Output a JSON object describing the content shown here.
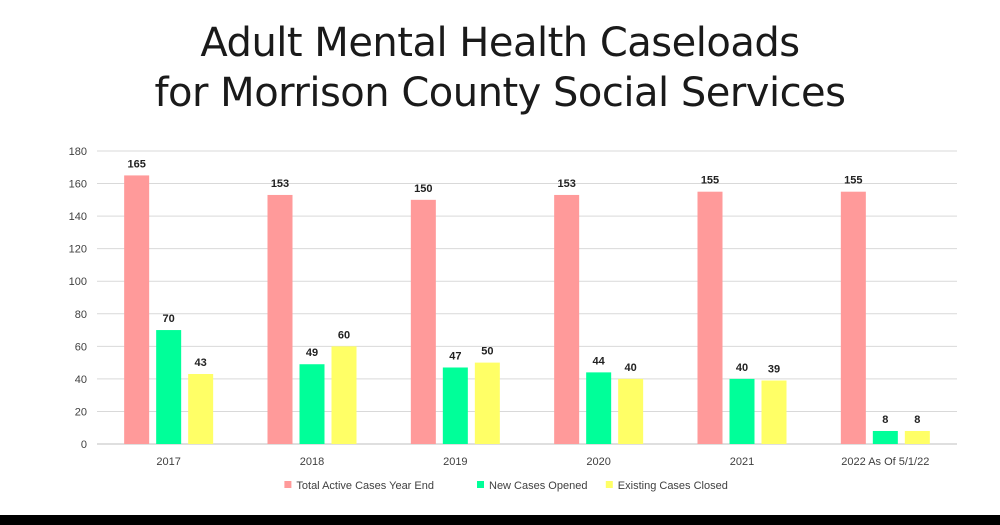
{
  "chart_data": {
    "type": "bar",
    "title": [
      "Adult Mental Health Caseloads",
      "for Morrison County Social Services"
    ],
    "categories": [
      "2017",
      "2018",
      "2019",
      "2020",
      "2021",
      "2022 As Of 5/1/22"
    ],
    "series": [
      {
        "name": "Total Active Cases Year End",
        "color": "#ff9a9a",
        "values": [
          165,
          153,
          150,
          153,
          155,
          155
        ]
      },
      {
        "name": "New Cases Opened",
        "color": "#00ff99",
        "values": [
          70,
          49,
          47,
          44,
          40,
          8
        ]
      },
      {
        "name": "Existing Cases Closed",
        "color": "#ffff66",
        "values": [
          43,
          60,
          50,
          40,
          39,
          8
        ]
      }
    ],
    "xlabel": "",
    "ylabel": "",
    "ylim": [
      0,
      180
    ],
    "yticks": [
      0,
      20,
      40,
      60,
      80,
      100,
      120,
      140,
      160,
      180
    ],
    "grid": true,
    "legend": "bottom-center",
    "data_labels": true,
    "gridline_color": "#d9d9d9",
    "baseline_color": "#bfbfbf"
  }
}
